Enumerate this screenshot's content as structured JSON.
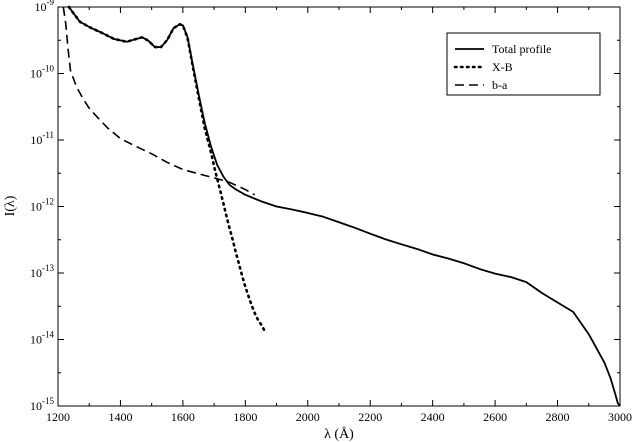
{
  "chart_data": {
    "type": "line",
    "xlabel": "λ (Å)",
    "ylabel": "I(λ)",
    "xlim": [
      1200,
      3000
    ],
    "ylim": [
      1e-15,
      1e-09
    ],
    "yscale": "log",
    "grid": false,
    "legend_placement": "top-right",
    "x_ticks": [
      "1200",
      "1400",
      "1600",
      "1800",
      "2000",
      "2200",
      "2400",
      "2600",
      "2800",
      "3000"
    ],
    "y_ticks": [
      {
        "base": "10",
        "exp": "-15"
      },
      {
        "base": "10",
        "exp": "-14"
      },
      {
        "base": "10",
        "exp": "-13"
      },
      {
        "base": "10",
        "exp": "-12"
      },
      {
        "base": "10",
        "exp": "-11"
      },
      {
        "base": "10",
        "exp": "-10"
      },
      {
        "base": "10",
        "exp": "-9"
      }
    ],
    "series": [
      {
        "name": "Total profile",
        "style": "solid",
        "x": [
          1235,
          1250,
          1270,
          1300,
          1340,
          1380,
          1420,
          1450,
          1470,
          1490,
          1510,
          1530,
          1550,
          1570,
          1590,
          1600,
          1615,
          1630,
          1650,
          1670,
          1690,
          1710,
          1730,
          1750,
          1770,
          1800,
          1850,
          1900,
          1950,
          2000,
          2050,
          2100,
          2150,
          2200,
          2250,
          2300,
          2350,
          2400,
          2450,
          2500,
          2550,
          2600,
          2650,
          2700,
          2750,
          2800,
          2850,
          2900,
          2950,
          2970,
          2985,
          2993,
          3000
        ],
        "y": [
          1e-09,
          8e-10,
          6e-10,
          5e-10,
          4.1e-10,
          3.3e-10,
          3e-10,
          3.3e-10,
          3.5e-10,
          3.1e-10,
          2.5e-10,
          2.5e-10,
          3.2e-10,
          4.8e-10,
          5.5e-10,
          5.3e-10,
          3.5e-10,
          1.5e-10,
          5e-11,
          1.8e-11,
          8e-12,
          4.2e-12,
          2.8e-12,
          2.1e-12,
          1.8e-12,
          1.5e-12,
          1.2e-12,
          1e-12,
          9e-13,
          8e-13,
          7e-13,
          5.8e-13,
          4.8e-13,
          3.9e-13,
          3.2e-13,
          2.7e-13,
          2.3e-13,
          1.9e-13,
          1.65e-13,
          1.4e-13,
          1.15e-13,
          9.8e-14,
          8.7e-14,
          7.3e-14,
          5e-14,
          3.6e-14,
          2.6e-14,
          1.2e-14,
          4.5e-15,
          2.6e-15,
          1.5e-15,
          1.1e-15,
          1e-15
        ]
      },
      {
        "name": "X-B",
        "style": "dotted",
        "x": [
          1235,
          1250,
          1270,
          1300,
          1340,
          1380,
          1420,
          1450,
          1470,
          1490,
          1510,
          1530,
          1550,
          1570,
          1590,
          1600,
          1615,
          1630,
          1650,
          1670,
          1690,
          1700,
          1710,
          1720,
          1730,
          1740,
          1750,
          1760,
          1770,
          1780,
          1790,
          1800,
          1810,
          1820,
          1830,
          1840,
          1850,
          1860
        ],
        "y": [
          1e-09,
          8e-10,
          6e-10,
          5e-10,
          4.1e-10,
          3.3e-10,
          3e-10,
          3.3e-10,
          3.5e-10,
          3.1e-10,
          2.5e-10,
          2.5e-10,
          3.2e-10,
          4.8e-10,
          5.5e-10,
          5.3e-10,
          3.4e-10,
          1.4e-10,
          4.5e-11,
          1.5e-11,
          6.5e-12,
          4e-12,
          2.6e-12,
          1.7e-12,
          1.1e-12,
          7e-13,
          4.6e-13,
          3.1e-13,
          2e-13,
          1.35e-13,
          9e-14,
          6.2e-14,
          4.5e-14,
          3.3e-14,
          2.5e-14,
          2e-14,
          1.7e-14,
          1.4e-14
        ]
      },
      {
        "name": "b-a",
        "style": "dashed",
        "x": [
          1217,
          1225,
          1232,
          1240,
          1260,
          1280,
          1300,
          1330,
          1360,
          1400,
          1450,
          1500,
          1550,
          1600,
          1650,
          1700,
          1750,
          1800,
          1830
        ],
        "y": [
          1e-09,
          5.5e-10,
          2.4e-10,
          1.1e-10,
          6.2e-11,
          4.2e-11,
          3e-11,
          2.1e-11,
          1.5e-11,
          1.05e-11,
          8e-12,
          6.2e-12,
          4.6e-12,
          3.6e-12,
          3.1e-12,
          2.7e-12,
          2.3e-12,
          1.8e-12,
          1.5e-12
        ]
      }
    ]
  }
}
